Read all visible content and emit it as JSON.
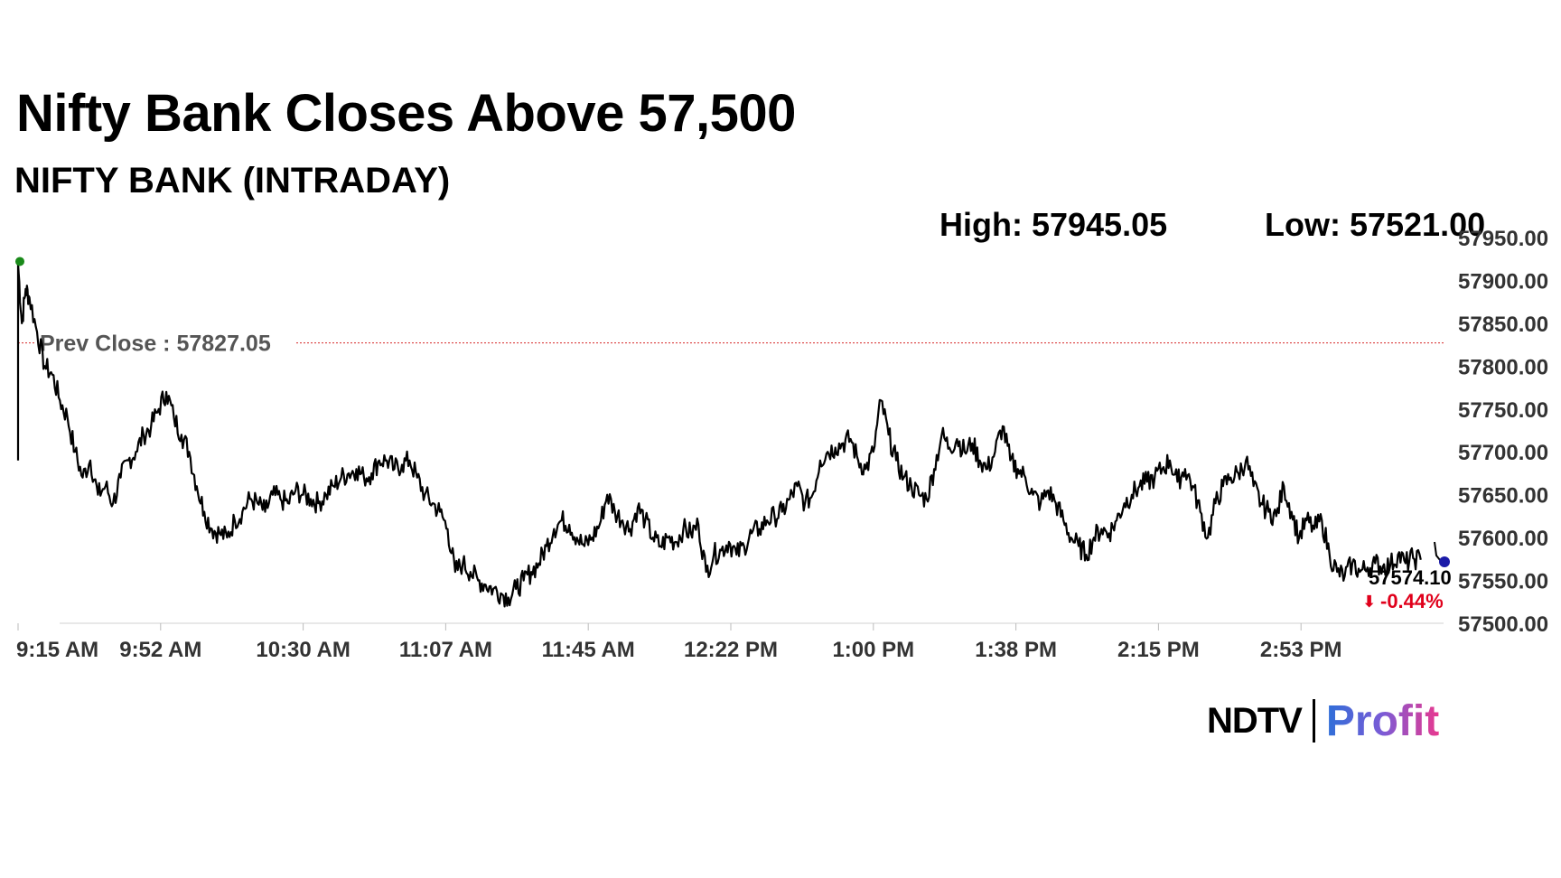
{
  "header": {
    "title": "Nifty Bank Closes Above 57,500",
    "subtitle": "NIFTY BANK (INTRADAY)"
  },
  "stats": {
    "high": "High: 57945.05",
    "low": "Low: 57521.00"
  },
  "brand": {
    "left": "NDTV",
    "right": "Profit"
  },
  "chart_data": {
    "type": "line",
    "title": "NIFTY BANK (INTRADAY)",
    "xlabel": "",
    "ylabel": "",
    "x_ticks": [
      "9:15 AM",
      "9:52 AM",
      "10:30 AM",
      "11:07 AM",
      "11:45 AM",
      "12:22 PM",
      "1:00 PM",
      "1:38 PM",
      "2:15 PM",
      "2:53 PM"
    ],
    "y_ticks": [
      "57500.00",
      "57550.00",
      "57600.00",
      "57650.00",
      "57700.00",
      "57750.00",
      "57800.00",
      "57850.00",
      "57900.00",
      "57950.00"
    ],
    "ylim": [
      57500,
      57950
    ],
    "x_range": [
      "9:15 AM",
      "3:30 PM"
    ],
    "grid": false,
    "prev_close": {
      "label": "Prev Close : 57827.05",
      "value": 57827.05
    },
    "last": {
      "value_label": "57574.10",
      "change_label": "-0.44%",
      "value": 57574.1
    },
    "colors": {
      "line": "#000000",
      "prev_close": "#d62728",
      "change": "#e0001b",
      "open_marker": "#1a8a1a",
      "last_marker": "#1a1aa8"
    },
    "series": [
      {
        "points": [
          [
            "9:15",
            57690
          ],
          [
            "9:15",
            57920
          ],
          [
            "9:16",
            57850
          ],
          [
            "9:17",
            57890
          ],
          [
            "9:18",
            57880
          ],
          [
            "9:20",
            57840
          ],
          [
            "9:22",
            57800
          ],
          [
            "9:24",
            57790
          ],
          [
            "9:26",
            57760
          ],
          [
            "9:28",
            57740
          ],
          [
            "9:30",
            57700
          ],
          [
            "9:32",
            57670
          ],
          [
            "9:34",
            57690
          ],
          [
            "9:36",
            57650
          ],
          [
            "9:38",
            57660
          ],
          [
            "9:40",
            57640
          ],
          [
            "9:42",
            57670
          ],
          [
            "9:44",
            57690
          ],
          [
            "9:46",
            57700
          ],
          [
            "9:48",
            57720
          ],
          [
            "9:50",
            57730
          ],
          [
            "9:52",
            57750
          ],
          [
            "9:54",
            57770
          ],
          [
            "9:56",
            57740
          ],
          [
            "9:58",
            57720
          ],
          [
            "10:00",
            57700
          ],
          [
            "10:02",
            57660
          ],
          [
            "10:04",
            57630
          ],
          [
            "10:06",
            57610
          ],
          [
            "10:08",
            57605
          ],
          [
            "10:10",
            57600
          ],
          [
            "10:12",
            57620
          ],
          [
            "10:14",
            57630
          ],
          [
            "10:16",
            57645
          ],
          [
            "10:18",
            57640
          ],
          [
            "10:20",
            57630
          ],
          [
            "10:22",
            57650
          ],
          [
            "10:24",
            57645
          ],
          [
            "10:26",
            57640
          ],
          [
            "10:28",
            57655
          ],
          [
            "10:30",
            57650
          ],
          [
            "10:32",
            57645
          ],
          [
            "10:34",
            57640
          ],
          [
            "10:36",
            57650
          ],
          [
            "10:38",
            57660
          ],
          [
            "10:40",
            57670
          ],
          [
            "10:42",
            57675
          ],
          [
            "10:44",
            57680
          ],
          [
            "10:46",
            57670
          ],
          [
            "10:48",
            57675
          ],
          [
            "10:50",
            57690
          ],
          [
            "10:52",
            57690
          ],
          [
            "10:54",
            57680
          ],
          [
            "10:56",
            57685
          ],
          [
            "10:58",
            57690
          ],
          [
            "11:00",
            57670
          ],
          [
            "11:02",
            57650
          ],
          [
            "11:04",
            57640
          ],
          [
            "11:06",
            57630
          ],
          [
            "11:08",
            57610
          ],
          [
            "11:10",
            57560
          ],
          [
            "11:12",
            57570
          ],
          [
            "11:14",
            57560
          ],
          [
            "11:16",
            57550
          ],
          [
            "11:18",
            57545
          ],
          [
            "11:20",
            57540
          ],
          [
            "11:22",
            57535
          ],
          [
            "11:24",
            57530
          ],
          [
            "11:26",
            57540
          ],
          [
            "11:28",
            57550
          ],
          [
            "11:30",
            57560
          ],
          [
            "11:32",
            57570
          ],
          [
            "11:34",
            57590
          ],
          [
            "11:36",
            57610
          ],
          [
            "11:38",
            57620
          ],
          [
            "11:40",
            57615
          ],
          [
            "11:42",
            57600
          ],
          [
            "11:44",
            57590
          ],
          [
            "11:46",
            57600
          ],
          [
            "11:48",
            57615
          ],
          [
            "11:50",
            57650
          ],
          [
            "11:52",
            57630
          ],
          [
            "11:54",
            57620
          ],
          [
            "11:56",
            57610
          ],
          [
            "11:58",
            57635
          ],
          [
            "12:00",
            57620
          ],
          [
            "12:02",
            57600
          ],
          [
            "12:04",
            57590
          ],
          [
            "12:06",
            57600
          ],
          [
            "12:08",
            57595
          ],
          [
            "12:10",
            57610
          ],
          [
            "12:12",
            57605
          ],
          [
            "12:14",
            57615
          ],
          [
            "12:16",
            57560
          ],
          [
            "12:18",
            57580
          ],
          [
            "12:20",
            57585
          ],
          [
            "12:22",
            57595
          ],
          [
            "12:24",
            57580
          ],
          [
            "12:26",
            57590
          ],
          [
            "12:28",
            57605
          ],
          [
            "12:30",
            57610
          ],
          [
            "12:32",
            57620
          ],
          [
            "12:34",
            57625
          ],
          [
            "12:36",
            57630
          ],
          [
            "12:38",
            57645
          ],
          [
            "12:40",
            57660
          ],
          [
            "12:42",
            57640
          ],
          [
            "12:44",
            57650
          ],
          [
            "12:46",
            57690
          ],
          [
            "12:48",
            57700
          ],
          [
            "12:50",
            57705
          ],
          [
            "12:52",
            57710
          ],
          [
            "12:54",
            57715
          ],
          [
            "12:56",
            57690
          ],
          [
            "12:58",
            57680
          ],
          [
            "13:00",
            57700
          ],
          [
            "13:02",
            57760
          ],
          [
            "13:04",
            57720
          ],
          [
            "13:06",
            57690
          ],
          [
            "13:08",
            57670
          ],
          [
            "13:10",
            57660
          ],
          [
            "13:12",
            57650
          ],
          [
            "13:14",
            57645
          ],
          [
            "13:16",
            57680
          ],
          [
            "13:18",
            57720
          ],
          [
            "13:20",
            57705
          ],
          [
            "13:22",
            57715
          ],
          [
            "13:24",
            57700
          ],
          [
            "13:26",
            57710
          ],
          [
            "13:28",
            57690
          ],
          [
            "13:30",
            57680
          ],
          [
            "13:32",
            57700
          ],
          [
            "13:34",
            57730
          ],
          [
            "13:36",
            57690
          ],
          [
            "13:38",
            57680
          ],
          [
            "13:40",
            57670
          ],
          [
            "13:42",
            57650
          ],
          [
            "13:44",
            57640
          ],
          [
            "13:46",
            57655
          ],
          [
            "13:48",
            57640
          ],
          [
            "13:50",
            57620
          ],
          [
            "13:52",
            57600
          ],
          [
            "13:54",
            57590
          ],
          [
            "13:56",
            57580
          ],
          [
            "13:58",
            57600
          ],
          [
            "14:00",
            57610
          ],
          [
            "14:02",
            57605
          ],
          [
            "14:04",
            57620
          ],
          [
            "14:06",
            57640
          ],
          [
            "14:08",
            57650
          ],
          [
            "14:10",
            57660
          ],
          [
            "14:12",
            57665
          ],
          [
            "14:14",
            57670
          ],
          [
            "14:16",
            57680
          ],
          [
            "14:18",
            57690
          ],
          [
            "14:20",
            57665
          ],
          [
            "14:22",
            57680
          ],
          [
            "14:24",
            57660
          ],
          [
            "14:26",
            57630
          ],
          [
            "14:28",
            57600
          ],
          [
            "14:30",
            57640
          ],
          [
            "14:32",
            57660
          ],
          [
            "14:34",
            57670
          ],
          [
            "14:36",
            57675
          ],
          [
            "14:38",
            57690
          ],
          [
            "14:40",
            57660
          ],
          [
            "14:42",
            57640
          ],
          [
            "14:44",
            57630
          ],
          [
            "14:46",
            57625
          ],
          [
            "14:48",
            57660
          ],
          [
            "14:50",
            57630
          ],
          [
            "14:52",
            57600
          ],
          [
            "14:54",
            57620
          ],
          [
            "14:56",
            57610
          ],
          [
            "14:58",
            57620
          ],
          [
            "15:00",
            57580
          ],
          [
            "15:02",
            57560
          ],
          [
            "15:04",
            57555
          ],
          [
            "15:06",
            57570
          ],
          [
            "15:08",
            57560
          ],
          [
            "15:10",
            57565
          ],
          [
            "15:12",
            57570
          ],
          [
            "15:14",
            57566
          ],
          [
            "15:16",
            57568
          ],
          [
            "15:18",
            57580
          ],
          [
            "15:20",
            57570
          ],
          [
            "15:22",
            57576
          ],
          [
            "15:24",
            57574.1
          ]
        ]
      }
    ]
  }
}
